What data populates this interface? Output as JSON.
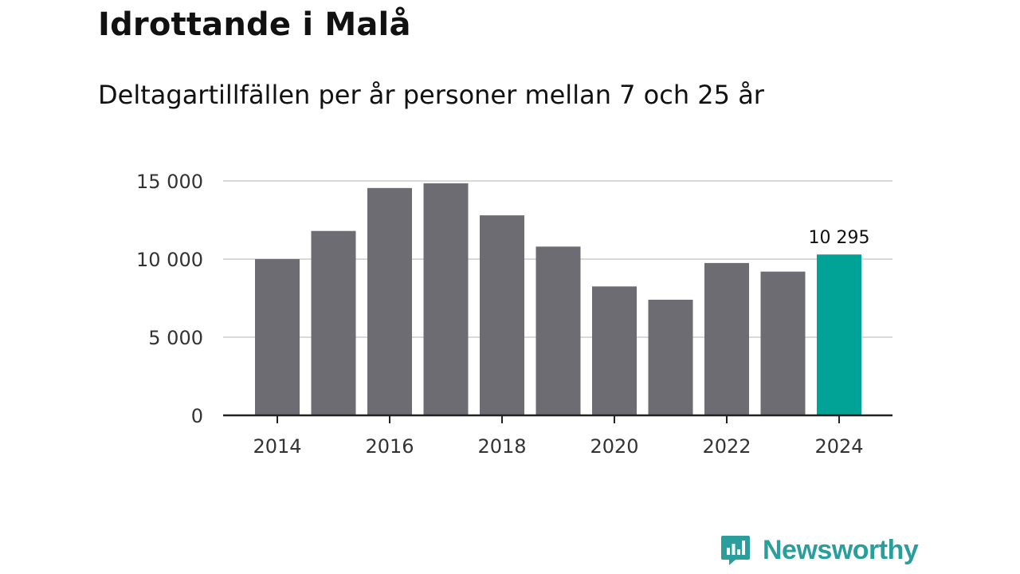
{
  "header": {
    "title": "Idrottande i Malå",
    "subtitle": "Deltagartillfällen per år personer mellan 7 och 25 år"
  },
  "chart_data": {
    "type": "bar",
    "categories": [
      "2014",
      "2015",
      "2016",
      "2017",
      "2018",
      "2019",
      "2020",
      "2021",
      "2022",
      "2023",
      "2024"
    ],
    "values": [
      10000,
      11800,
      14550,
      14850,
      12800,
      10800,
      8250,
      7400,
      9750,
      9200,
      10295
    ],
    "xticks": [
      "2014",
      "2016",
      "2018",
      "2020",
      "2022",
      "2024"
    ],
    "yticks": [
      0,
      5000,
      10000,
      15000
    ],
    "ytick_labels": [
      "0",
      "5 000",
      "10 000",
      "15 000"
    ],
    "ylim": [
      0,
      15000
    ],
    "highlight_index": 10,
    "highlight_label": "10 295",
    "colors": {
      "bar": "#6d6c73",
      "highlight": "#00a396",
      "grid": "#d9d9d9",
      "axis": "#222222"
    },
    "title": "Idrottande i Malå",
    "xlabel": "",
    "ylabel": ""
  },
  "brand": {
    "name": "Newsworthy",
    "icon": "newsworthy-logo-icon",
    "color": "#2a9d9d"
  }
}
